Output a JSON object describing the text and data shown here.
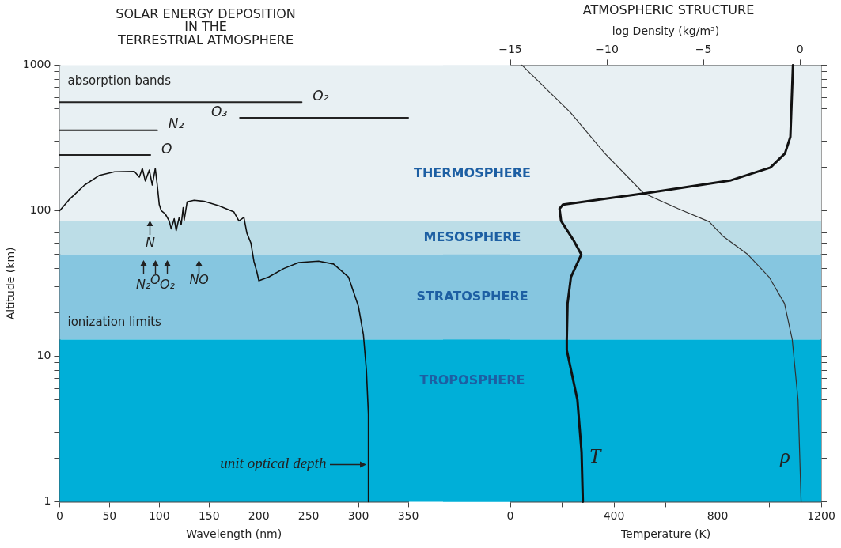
{
  "chart_data": [
    {
      "type": "line",
      "title": "SOLAR ENERGY DEPOSITION\nIN THE\nTERRESTRIAL ATMOSPHERE",
      "xlabel": "Wavelength (nm)",
      "ylabel": "Altitude (km)",
      "xlim": [
        0,
        350
      ],
      "xticks": [
        0,
        50,
        100,
        150,
        200,
        250,
        300,
        350
      ],
      "ylim": [
        1,
        1000
      ],
      "yticks": [
        1,
        {
          "value": 2,
          "label": null
        },
        {
          "value": 3,
          "label": null
        },
        {
          "value": 4,
          "label": null
        },
        {
          "value": 5,
          "label": null
        },
        {
          "value": 6,
          "label": null
        },
        {
          "value": 7,
          "label": null
        },
        {
          "value": 8,
          "label": null
        },
        {
          "value": 9,
          "label": null
        },
        10,
        {
          "value": 20,
          "label": null
        },
        {
          "value": 30,
          "label": null
        },
        {
          "value": 40,
          "label": null
        },
        {
          "value": 50,
          "label": null
        },
        {
          "value": 60,
          "label": null
        },
        {
          "value": 70,
          "label": null
        },
        {
          "value": 80,
          "label": null
        },
        {
          "value": 90,
          "label": null
        },
        100,
        {
          "value": 200,
          "label": null
        },
        {
          "value": 300,
          "label": null
        },
        {
          "value": 400,
          "label": null
        },
        {
          "value": 500,
          "label": null
        },
        {
          "value": 600,
          "label": null
        },
        {
          "value": 700,
          "label": null
        },
        {
          "value": 800,
          "label": null
        },
        {
          "value": 900,
          "label": null
        },
        1000
      ],
      "log": "y",
      "grid": false,
      "legend": false,
      "bands": [
        {
          "axis": "y",
          "from": 85,
          "to": 1000,
          "label": "THERMOSPHERE",
          "color": "#e8f0f3"
        },
        {
          "axis": "y",
          "from": 50,
          "to": 85,
          "label": "MESOSPHERE",
          "color": "#bcdde7"
        },
        {
          "axis": "y",
          "from": 13,
          "to": 50,
          "label": "STRATOSPHERE",
          "color": "#86c6e0"
        },
        {
          "axis": "y",
          "from": 1,
          "to": 13,
          "label": "TROPOSPHERE",
          "color": "#00afd8"
        }
      ],
      "annotations": [
        "absorption bands",
        "ionization limits",
        "N",
        "N₂",
        "O",
        "O₂",
        "NO",
        {
          "text": "unit optical depth",
          "x": 309,
          "y": 1.8
        }
      ],
      "series": [
        {
          "color": "#111111",
          "x": [
            0,
            10,
            25,
            40,
            55,
            75,
            80,
            83,
            86,
            90,
            93,
            96,
            98,
            100,
            102,
            106,
            110,
            112,
            115,
            117,
            120,
            122,
            124,
            125,
            128,
            135,
            145,
            160,
            175,
            180,
            185,
            188,
            192,
            195,
            198,
            200,
            210,
            225,
            240,
            260,
            275,
            290,
            300,
            305,
            308,
            310,
            310
          ],
          "values": [
            100,
            120,
            150,
            175,
            185,
            186,
            170,
            195,
            160,
            190,
            150,
            195,
            150,
            110,
            100,
            95,
            85,
            75,
            88,
            73,
            90,
            80,
            105,
            86,
            115,
            118,
            116,
            108,
            98,
            85,
            90,
            70,
            60,
            45,
            38,
            33,
            35,
            40,
            44,
            45,
            43,
            35,
            22,
            14,
            8,
            4,
            1
          ]
        },
        {
          "name": "O₂",
          "color": "#222222",
          "x": [
            0,
            243
          ],
          "values": [
            556,
            556
          ]
        },
        {
          "name": "O₃",
          "color": "#222222",
          "x": [
            181,
            350
          ],
          "values": [
            434,
            434
          ]
        },
        {
          "name": "N₂",
          "color": "#222222",
          "x": [
            0,
            98
          ],
          "values": [
            357,
            357
          ]
        },
        {
          "name": "O",
          "color": "#222222",
          "x": [
            0,
            91
          ],
          "values": [
            241,
            241
          ]
        }
      ]
    },
    {
      "type": "line",
      "title": "ATMOSPHERIC STRUCTURE",
      "xlabel": "Temperature (K)",
      "x2label": "log Density (kg/m³)",
      "xlim": [
        0,
        1200
      ],
      "xticks": [
        0,
        {
          "value": 200,
          "label": null
        },
        400,
        {
          "value": 600,
          "label": null
        },
        800,
        {
          "value": 1000,
          "label": null
        },
        1200
      ],
      "x2lim": [
        -15,
        1.1
      ],
      "x2ticks": [
        -15,
        -10,
        -5,
        0
      ],
      "ylim": [
        1,
        1000
      ],
      "yticks": [
        1,
        {
          "value": 2,
          "label": null
        },
        {
          "value": 3,
          "label": null
        },
        {
          "value": 4,
          "label": null
        },
        {
          "value": 5,
          "label": null
        },
        {
          "value": 6,
          "label": null
        },
        {
          "value": 7,
          "label": null
        },
        {
          "value": 8,
          "label": null
        },
        {
          "value": 9,
          "label": null
        },
        {
          "value": 10,
          "label": null
        },
        {
          "value": 20,
          "label": null
        },
        {
          "value": 30,
          "label": null
        },
        {
          "value": 40,
          "label": null
        },
        {
          "value": 50,
          "label": null
        },
        {
          "value": 60,
          "label": null
        },
        {
          "value": 70,
          "label": null
        },
        {
          "value": 80,
          "label": null
        },
        {
          "value": 90,
          "label": null
        },
        {
          "value": 100,
          "label": null
        },
        {
          "value": 200,
          "label": null
        },
        {
          "value": 300,
          "label": null
        },
        {
          "value": 400,
          "label": null
        },
        {
          "value": 500,
          "label": null
        },
        {
          "value": 600,
          "label": null
        },
        {
          "value": 700,
          "label": null
        },
        {
          "value": 800,
          "label": null
        },
        {
          "value": 900,
          "label": null
        },
        {
          "value": 1000,
          "label": null
        }
      ],
      "log": "y",
      "grid": false,
      "legend": false,
      "tick_labels": "x",
      "bands": [
        {
          "axis": "y",
          "from": 85,
          "to": 1000,
          "color": "#e8f0f3"
        },
        {
          "axis": "y",
          "from": 50,
          "to": 85,
          "color": "#bcdde7"
        },
        {
          "axis": "y",
          "from": 13,
          "to": 50,
          "color": "#86c6e0"
        },
        {
          "axis": "y",
          "from": 1,
          "to": 13,
          "color": "#00afd8"
        }
      ],
      "series": [
        {
          "name": "T",
          "color": "#111111",
          "x": [
            280,
            275,
            259,
            218,
            218,
            221,
            234,
            274,
            243,
            196,
            190,
            203,
            524,
            848,
            1004,
            1060,
            1081,
            1091
          ],
          "values": [
            1,
            2.2,
            5,
            11,
            13,
            23,
            35,
            50,
            63,
            85,
            103,
            110,
            132,
            161,
            198,
            247,
            322,
            1000
          ]
        },
        {
          "name": "ρ",
          "color": "#333333",
          "axis": "x2",
          "x": [
            0.06,
            -0.1,
            -0.4,
            -0.8,
            -1.6,
            -2.7,
            -4.0,
            -4.7,
            -6.3,
            -8.1,
            -10.1,
            -11.9,
            -14.4
          ],
          "values": [
            1,
            5,
            13,
            23,
            35,
            50,
            67,
            84,
            103,
            132,
            247,
            475,
            1000
          ]
        }
      ]
    }
  ]
}
